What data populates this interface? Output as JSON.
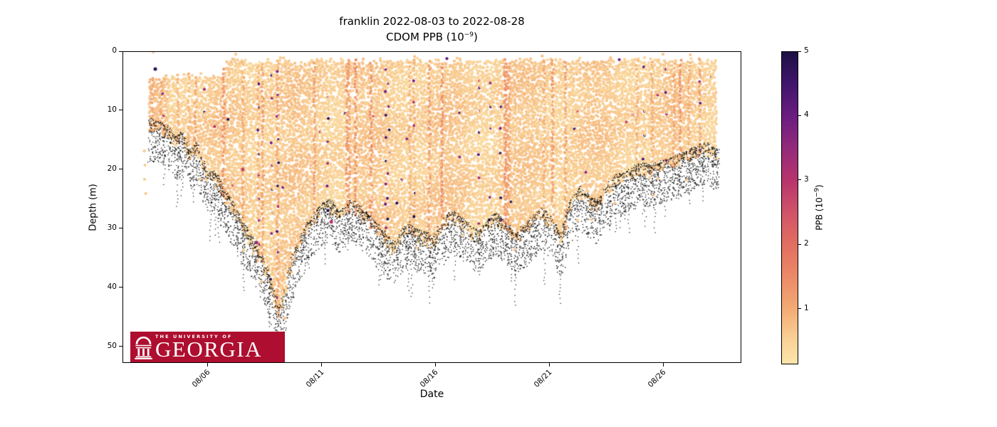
{
  "figure": {
    "title_line1": "franklin 2022-08-03 to 2022-08-28",
    "title_line2_prefix": "CDOM PPB (10",
    "title_line2_exp": "−9",
    "title_line2_suffix": ")"
  },
  "axes": {
    "xlabel": "Date",
    "ylabel": "Depth (m)",
    "x_ticks": [
      {
        "label": "08/06",
        "day": 3
      },
      {
        "label": "08/11",
        "day": 8
      },
      {
        "label": "08/16",
        "day": 13
      },
      {
        "label": "08/21",
        "day": 18
      },
      {
        "label": "08/26",
        "day": 23
      }
    ],
    "y_ticks": [
      {
        "label": "0",
        "depth": 0
      },
      {
        "label": "10",
        "depth": 10
      },
      {
        "label": "20",
        "depth": 20
      },
      {
        "label": "30",
        "depth": 30
      },
      {
        "label": "40",
        "depth": 40
      },
      {
        "label": "50",
        "depth": 50
      }
    ]
  },
  "colorbar": {
    "label_prefix": "PPB (10",
    "label_exp": "−9",
    "label_suffix": ")",
    "value_min": 0.16,
    "value_max": 5,
    "ticks": [
      {
        "label": "1",
        "value": 1
      },
      {
        "label": "2",
        "value": 2
      },
      {
        "label": "3",
        "value": 3
      },
      {
        "label": "4",
        "value": 4
      },
      {
        "label": "5",
        "value": 5
      }
    ]
  },
  "logo": {
    "line1": "THE UNIVERSITY OF",
    "line2": "GEORGIA",
    "bg_color": "#AE0E2F",
    "text_color": "#ffffff"
  },
  "chart_data": {
    "type": "scatter",
    "title": "franklin 2022-08-03 to 2022-08-28",
    "subtitle": "CDOM PPB (10−9)",
    "xlabel": "Date",
    "ylabel": "Depth (m)",
    "x_axis": {
      "day0_date": "2022-08-03",
      "xlim_days": [
        -0.7,
        26.5
      ],
      "tick_days": [
        3,
        8,
        13,
        18,
        23
      ],
      "tick_labels": [
        "08/06",
        "08/11",
        "08/16",
        "08/21",
        "08/26"
      ]
    },
    "y_axis": {
      "ylim": [
        52.8,
        0
      ],
      "ticks": [
        0,
        10,
        20,
        30,
        40,
        50
      ]
    },
    "color_axis": {
      "label": "PPB (10−9)",
      "range": [
        0.16,
        5
      ],
      "ticks": [
        1,
        2,
        3,
        4,
        5
      ],
      "colormap_stops": [
        {
          "value": 0.16,
          "color": "#fbe5ab"
        },
        {
          "value": 0.55,
          "color": "#f9d096"
        },
        {
          "value": 1.0,
          "color": "#f3ab74"
        },
        {
          "value": 1.5,
          "color": "#eb8a68"
        },
        {
          "value": 2.0,
          "color": "#e26e60"
        },
        {
          "value": 2.5,
          "color": "#d15468"
        },
        {
          "value": 3.0,
          "color": "#b8346c"
        },
        {
          "value": 3.5,
          "color": "#932a7a"
        },
        {
          "value": 4.0,
          "color": "#6b1d80"
        },
        {
          "value": 4.5,
          "color": "#40156b"
        },
        {
          "value": 5.0,
          "color": "#1e1044"
        }
      ]
    },
    "series": {
      "description": "Glider profile scatter: CDOM concentration vs depth over time; black speckles mark seafloor/bottom returns along the lower envelope.",
      "data_day_range": [
        0.5,
        25.35
      ],
      "typical_value_range": [
        0.4,
        1.0
      ],
      "outlier_fraction": 0.0028,
      "outlier_value_range": [
        2.1,
        5
      ],
      "seafloor_speckle_color": "#000000",
      "speckle_band_below_envelope_m": [
        0,
        7
      ],
      "top_envelope_day_depth": [
        [
          0.5,
          4.6
        ],
        [
          3.6,
          4.4
        ],
        [
          3.9,
          1.8
        ],
        [
          25.35,
          1.8
        ]
      ],
      "bottom_envelope_day_depth": [
        [
          0.5,
          13
        ],
        [
          0.9,
          13.5
        ],
        [
          1.3,
          14.5
        ],
        [
          1.6,
          16
        ],
        [
          1.9,
          15
        ],
        [
          2.2,
          18.5
        ],
        [
          2.5,
          17
        ],
        [
          2.8,
          20
        ],
        [
          3.0,
          22
        ],
        [
          3.3,
          21.5
        ],
        [
          3.6,
          24
        ],
        [
          3.9,
          26
        ],
        [
          4.2,
          27.5
        ],
        [
          4.5,
          30
        ],
        [
          4.8,
          32
        ],
        [
          5.1,
          34
        ],
        [
          5.4,
          36.5
        ],
        [
          5.7,
          39
        ],
        [
          5.95,
          43
        ],
        [
          6.1,
          45.5
        ],
        [
          6.3,
          43
        ],
        [
          6.5,
          40
        ],
        [
          6.7,
          36.5
        ],
        [
          6.9,
          34.5
        ],
        [
          7.2,
          32
        ],
        [
          7.5,
          30
        ],
        [
          7.8,
          28.5
        ],
        [
          8.1,
          27
        ],
        [
          8.4,
          26.5
        ],
        [
          8.7,
          28.5
        ],
        [
          9.0,
          28
        ],
        [
          9.3,
          26.5
        ],
        [
          9.6,
          27.5
        ],
        [
          10.0,
          29
        ],
        [
          10.4,
          30.5
        ],
        [
          10.8,
          32.5
        ],
        [
          11.2,
          34
        ],
        [
          11.5,
          32
        ],
        [
          11.8,
          30.5
        ],
        [
          12.1,
          31.5
        ],
        [
          12.5,
          32
        ],
        [
          12.9,
          33
        ],
        [
          13.3,
          30.5
        ],
        [
          13.7,
          28.5
        ],
        [
          14.1,
          29.5
        ],
        [
          14.5,
          31
        ],
        [
          14.9,
          32
        ],
        [
          15.3,
          30
        ],
        [
          15.7,
          29
        ],
        [
          16.1,
          30.5
        ],
        [
          16.5,
          32.5
        ],
        [
          16.9,
          31
        ],
        [
          17.3,
          29.5
        ],
        [
          17.7,
          28
        ],
        [
          18.1,
          29.5
        ],
        [
          18.5,
          32.5
        ],
        [
          18.9,
          27
        ],
        [
          19.3,
          24.5
        ],
        [
          19.7,
          26
        ],
        [
          20.1,
          27
        ],
        [
          20.5,
          24.5
        ],
        [
          20.9,
          22.5
        ],
        [
          21.3,
          22
        ],
        [
          21.7,
          21
        ],
        [
          22.1,
          20.5
        ],
        [
          22.5,
          21
        ],
        [
          22.9,
          20
        ],
        [
          23.3,
          19.5
        ],
        [
          23.7,
          19
        ],
        [
          24.1,
          18.5
        ],
        [
          24.5,
          17.5
        ],
        [
          24.9,
          17
        ],
        [
          25.35,
          18
        ]
      ],
      "notable_points": [
        {
          "day": 0.63,
          "depth": 0.15,
          "value": 0.7
        },
        {
          "day": 0.72,
          "depth": 3.0,
          "value": 4.8
        },
        {
          "day": 0.24,
          "depth": 16.9,
          "value": 0.6
        },
        {
          "day": 0.27,
          "depth": 19.3,
          "value": 0.6
        },
        {
          "day": 0.25,
          "depth": 21.7,
          "value": 0.6
        },
        {
          "day": 0.3,
          "depth": 24.1,
          "value": 0.6
        },
        {
          "day": 4.25,
          "depth": 0.5,
          "value": 0.65
        },
        {
          "day": 4.56,
          "depth": 20.0,
          "value": 2.8
        },
        {
          "day": 5.16,
          "depth": 32.4,
          "value": 3.4
        },
        {
          "day": 8.44,
          "depth": 28.9,
          "value": 3.0
        },
        {
          "day": 12.1,
          "depth": 0.9,
          "value": 0.7
        },
        {
          "day": 17.7,
          "depth": 0.8,
          "value": 0.75
        },
        {
          "day": 23.0,
          "depth": 0.5,
          "value": 0.7
        },
        {
          "day": 24.2,
          "depth": 0.6,
          "value": 0.7
        }
      ]
    },
    "render": {
      "seed": 1337,
      "col_step_day": 0.095,
      "depth_step_m": 0.48,
      "point_radius_px": 2.1,
      "speckle_size_px": 1.3,
      "dark_streak_fraction": 0.032,
      "warm_streak_fraction": 0.1,
      "stray_point_count": 14
    }
  }
}
